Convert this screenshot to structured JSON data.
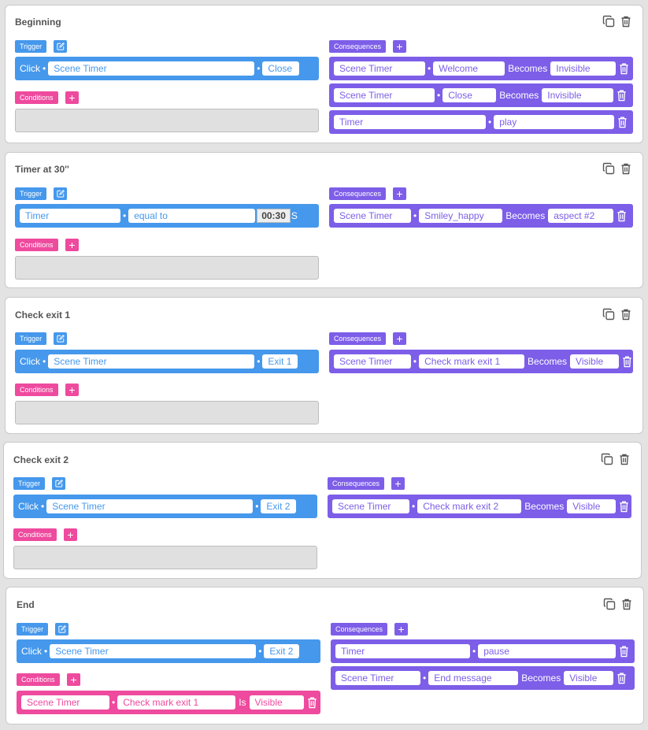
{
  "labels": {
    "trigger": "Trigger",
    "consequences": "Consequences",
    "conditions": "Conditions",
    "becomes": "Becomes",
    "is": "Is",
    "seconds": "S",
    "plus": "+"
  },
  "colors": {
    "trigger": "#4598ec",
    "consequence": "#7d5ee8",
    "condition": "#ee4a9e"
  },
  "icons": [
    "duplicate-icon",
    "trash-icon",
    "edit-icon",
    "plus-icon"
  ],
  "rules": [
    {
      "title": "Beginning",
      "trigger": {
        "event": "Click",
        "object": "Scene Timer",
        "target": "Close"
      },
      "consequences": [
        {
          "object": "Scene Timer",
          "target": "Welcome",
          "verb": "Becomes",
          "value": "Invisible"
        },
        {
          "object": "Scene Timer",
          "target": "Close",
          "verb": "Becomes",
          "value": "Invisible"
        },
        {
          "object": "Timer",
          "target": "play"
        }
      ]
    },
    {
      "title": "Timer at 30''",
      "trigger": {
        "object": "Timer",
        "comparator": "equal to",
        "time": "00:30"
      },
      "consequences": [
        {
          "object": "Scene Timer",
          "target": "Smiley_happy",
          "verb": "Becomes",
          "value": "aspect #2"
        }
      ]
    },
    {
      "title": "Check exit 1",
      "trigger": {
        "event": "Click",
        "object": "Scene Timer",
        "target": "Exit 1"
      },
      "consequences": [
        {
          "object": "Scene Timer",
          "target": "Check mark exit 1",
          "verb": "Becomes",
          "value": "Visible"
        }
      ]
    },
    {
      "title": "Check exit 2",
      "trigger": {
        "event": "Click",
        "object": "Scene Timer",
        "target": "Exit 2"
      },
      "consequences": [
        {
          "object": "Scene Timer",
          "target": "Check mark exit 2",
          "verb": "Becomes",
          "value": "Visible"
        }
      ]
    },
    {
      "title": "End",
      "trigger": {
        "event": "Click",
        "object": "Scene Timer",
        "target": "Exit 2"
      },
      "consequences": [
        {
          "object": "Timer",
          "target": "pause"
        },
        {
          "object": "Scene Timer",
          "target": "End message",
          "verb": "Becomes",
          "value": "Visible"
        }
      ],
      "conditions": [
        {
          "object": "Scene Timer",
          "target": "Check mark exit 1",
          "verb": "Is",
          "value": "Visible"
        }
      ]
    }
  ]
}
